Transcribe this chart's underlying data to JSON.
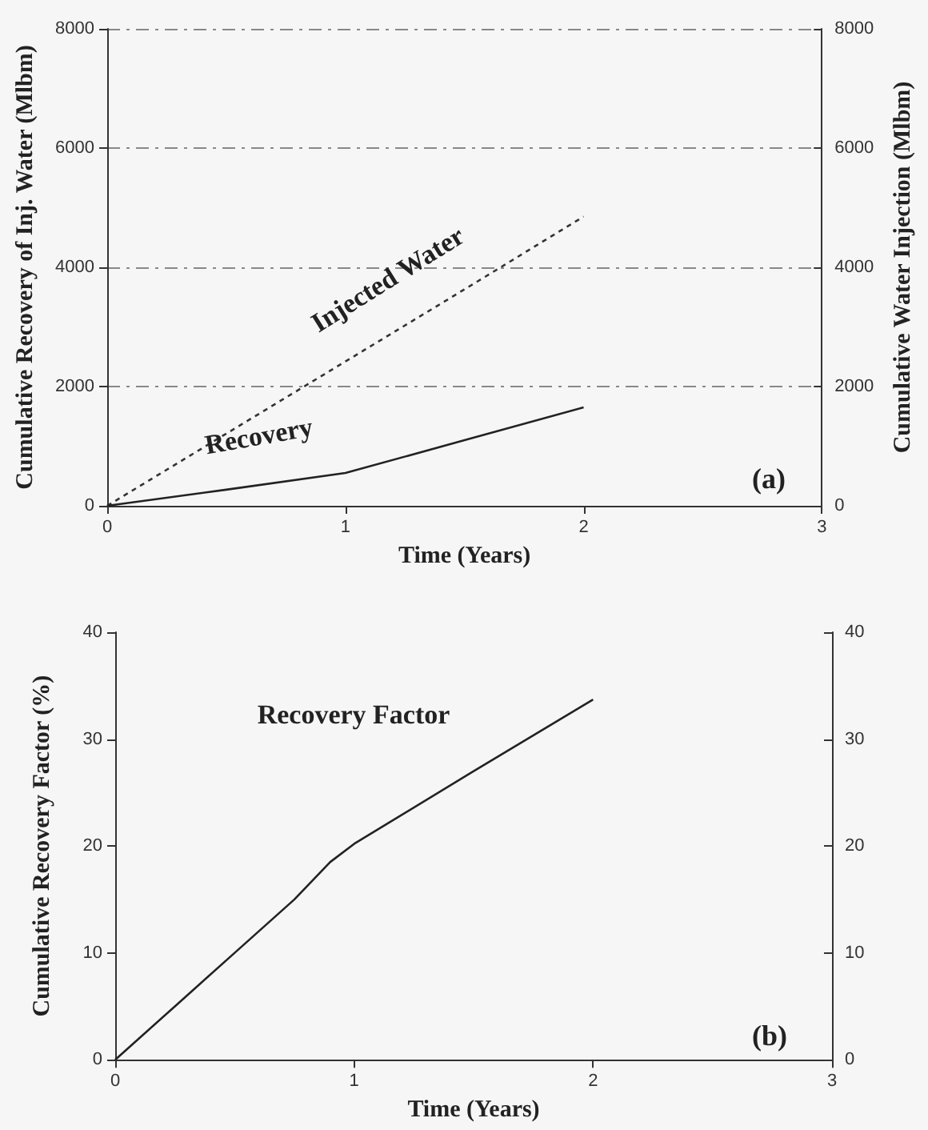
{
  "chart_data": [
    {
      "type": "line",
      "xlabel": "Time (Years)",
      "ylabel": "Cumulative Recovery of Inj. Water (Mlbm)",
      "y2label": "Cumulative Water Injection (Mlbm)",
      "xlim": [
        0,
        3
      ],
      "xticks": [
        0,
        1,
        2,
        3
      ],
      "ylim": [
        0,
        8000
      ],
      "yticks": [
        0,
        2000,
        4000,
        6000,
        8000
      ],
      "y2lim": [
        0,
        8000
      ],
      "y2ticks": [
        0,
        2000,
        4000,
        6000,
        8000
      ],
      "grid": "y",
      "annotations": [
        "(a)"
      ],
      "x": [
        0,
        0.5,
        1,
        1.5,
        2
      ],
      "series": [
        {
          "name": "Injected Water",
          "color": "#333333",
          "line_style": "dashed",
          "values": [
            0,
            1210,
            2420,
            3630,
            4850
          ]
        },
        {
          "name": "Recovery",
          "color": "#222222",
          "line_style": "solid",
          "values": [
            0,
            270,
            550,
            1100,
            1650
          ]
        }
      ]
    },
    {
      "type": "line",
      "xlabel": "Time (Years)",
      "ylabel": "Cumulative Recovery Factor (%)",
      "xlim": [
        0,
        3
      ],
      "xticks": [
        0,
        1,
        2,
        3
      ],
      "ylim": [
        0,
        40
      ],
      "yticks": [
        0,
        10,
        20,
        30,
        40
      ],
      "y2lim": [
        0,
        40
      ],
      "y2ticks": [
        0,
        10,
        20,
        30,
        40
      ],
      "annotations": [
        "(b)"
      ],
      "x": [
        0,
        0.25,
        0.5,
        0.75,
        0.9,
        1,
        1.5,
        2
      ],
      "series": [
        {
          "name": "Recovery Factor",
          "color": "#222222",
          "line_style": "solid",
          "values": [
            0,
            5,
            10,
            15,
            18.5,
            20.2,
            27,
            33.7
          ]
        }
      ]
    }
  ]
}
